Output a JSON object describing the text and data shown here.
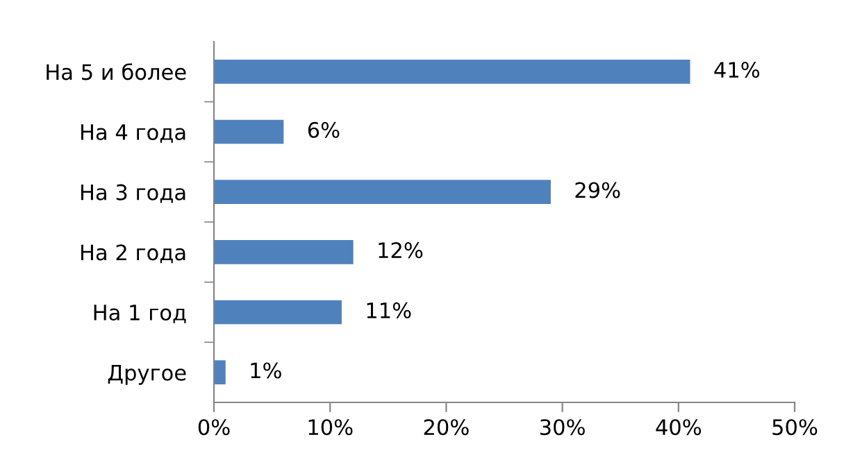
{
  "chart_data": {
    "type": "bar",
    "orientation": "horizontal",
    "categories": [
      "На 5 и более",
      "На 4 года",
      "На 3 года",
      "На 2 года",
      "На 1 год",
      "Другое"
    ],
    "values": [
      41,
      6,
      29,
      12,
      11,
      1
    ],
    "value_labels": [
      "41%",
      "6%",
      "29%",
      "12%",
      "11%",
      "1%"
    ],
    "color": "#4f81bd",
    "xlim": [
      0,
      50
    ],
    "xticks": [
      {
        "value": 0,
        "label": "0%"
      },
      {
        "value": 10,
        "label": "10%"
      },
      {
        "value": 20,
        "label": "20%"
      },
      {
        "value": 30,
        "label": "30%"
      },
      {
        "value": 40,
        "label": "40%"
      },
      {
        "value": 50,
        "label": "50%"
      }
    ],
    "grid": false,
    "legend": false
  }
}
